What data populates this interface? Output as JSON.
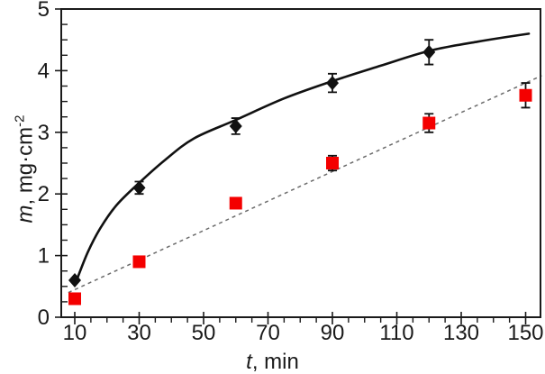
{
  "chart": {
    "ylabel_var": "m",
    "ylabel_rest": ", mg·cm",
    "ylabel_exp": "-2",
    "xlabel_var": "t",
    "xlabel_rest": ", min"
  },
  "chart_data": {
    "type": "scatter",
    "title": "",
    "xlabel": "t, min",
    "ylabel": "m, mg·cm^-2",
    "xlim": [
      5.8,
      155
    ],
    "ylim": [
      0,
      5
    ],
    "grid": false,
    "legend": "none",
    "x_major_values": [
      10,
      30,
      50,
      70,
      90,
      110,
      130,
      150
    ],
    "x_tick_labels": [
      "10",
      "30",
      "50",
      "70",
      "90",
      "110",
      "130",
      "150"
    ],
    "x_minor_step": 5,
    "y_major_values": [
      0,
      1,
      2,
      3,
      4,
      5
    ],
    "y_tick_labels": [
      "0",
      "1",
      "2",
      "3",
      "4",
      "5"
    ],
    "y_minor_step": 0.25,
    "colors": {
      "diamond_series": "#111111",
      "square_series": "#f40000",
      "trend_dashed": "#6b6b6b",
      "axis": "#1a1a1a"
    },
    "series": [
      {
        "name": "diamond-solid-curve",
        "marker": "diamond",
        "marker_color": "#111111",
        "line_style": "solid-smooth",
        "line_color": "#111111",
        "points": [
          {
            "t": 10,
            "m": 0.6,
            "err": 0
          },
          {
            "t": 30,
            "m": 2.1,
            "err": 0.1
          },
          {
            "t": 60,
            "m": 3.1,
            "err": 0.13
          },
          {
            "t": 90,
            "m": 3.8,
            "err": 0.15
          },
          {
            "t": 120,
            "m": 4.3,
            "err": 0.2
          }
        ],
        "curve_samples": [
          [
            10,
            0.52
          ],
          [
            14,
            1.05
          ],
          [
            18,
            1.45
          ],
          [
            23,
            1.82
          ],
          [
            30,
            2.18
          ],
          [
            38,
            2.55
          ],
          [
            47,
            2.9
          ],
          [
            60,
            3.2
          ],
          [
            75,
            3.55
          ],
          [
            90,
            3.83
          ],
          [
            105,
            4.08
          ],
          [
            120,
            4.32
          ],
          [
            135,
            4.47
          ],
          [
            151,
            4.6
          ]
        ]
      },
      {
        "name": "square-dashed-line",
        "marker": "square",
        "marker_color": "#f40000",
        "line_style": "dashed-straight",
        "line_color": "#6b6b6b",
        "points": [
          {
            "t": 10,
            "m": 0.3,
            "err": 0
          },
          {
            "t": 30,
            "m": 0.9,
            "err": 0
          },
          {
            "t": 60,
            "m": 1.85,
            "err": 0
          },
          {
            "t": 90,
            "m": 2.5,
            "err": 0.12
          },
          {
            "t": 120,
            "m": 3.15,
            "err": 0.15
          },
          {
            "t": 150,
            "m": 3.6,
            "err": 0.2
          }
        ],
        "trend_line": {
          "from": [
            8,
            0.4
          ],
          "to": [
            155,
            3.92
          ]
        }
      }
    ]
  }
}
